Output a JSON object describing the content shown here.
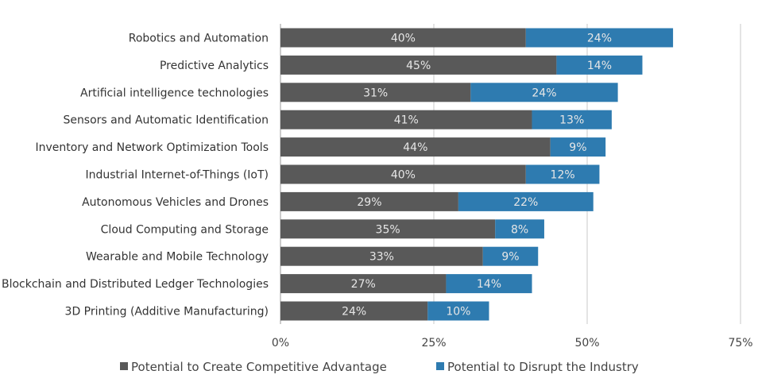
{
  "chart_data": {
    "type": "bar",
    "orientation": "horizontal",
    "stacked": true,
    "categories": [
      "Robotics and Automation",
      "Predictive Analytics",
      "Artificial intelligence technologies",
      "Sensors and Automatic Identification",
      "Inventory and Network Optimization Tools",
      "Industrial Internet-of-Things (IoT)",
      "Autonomous Vehicles and Drones",
      "Cloud Computing and Storage",
      "Wearable and Mobile Technology",
      "Blockchain and Distributed Ledger Technologies",
      "3D Printing (Additive Manufacturing)"
    ],
    "series": [
      {
        "name": "Potential to Create Competitive Advantage",
        "color": "#595959",
        "values": [
          40,
          45,
          31,
          41,
          44,
          40,
          29,
          35,
          33,
          27,
          24
        ]
      },
      {
        "name": "Potential to Disrupt the Industry",
        "color": "#2e7bb0",
        "values": [
          24,
          14,
          24,
          13,
          9,
          12,
          22,
          8,
          9,
          14,
          10
        ]
      }
    ],
    "data_label_suffix": "%",
    "xlim": [
      0,
      75
    ],
    "xticks": [
      0,
      25,
      50,
      75
    ],
    "xtick_labels": [
      "0%",
      "25%",
      "50%",
      "75%"
    ],
    "grid": "vertical",
    "legend_position": "bottom",
    "title": "",
    "xlabel": "",
    "ylabel": ""
  }
}
